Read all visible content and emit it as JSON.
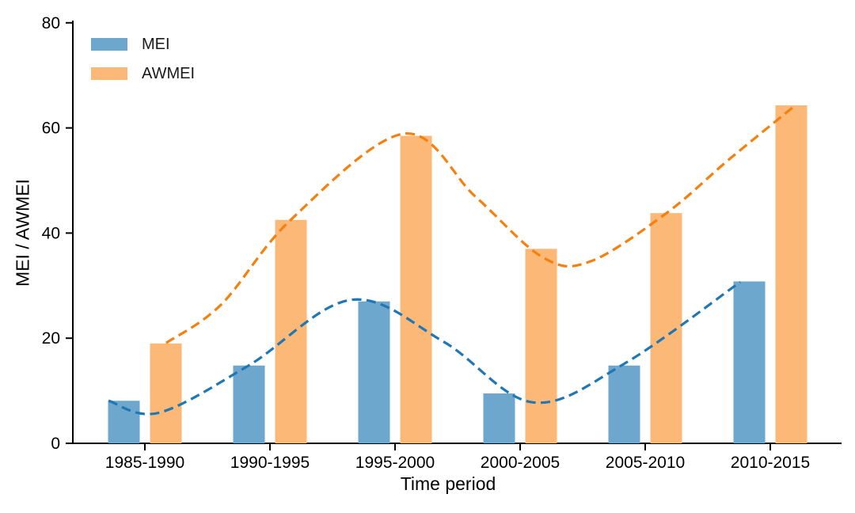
{
  "chart_data": {
    "type": "bar",
    "title": "",
    "xlabel": "Time period",
    "ylabel": "MEI / AWMEI",
    "categories": [
      "1985-1990",
      "1990-1995",
      "1995-2000",
      "2000-2005",
      "2005-2010",
      "2010-2015"
    ],
    "yticks": [
      0,
      20,
      40,
      60,
      80
    ],
    "ylim": [
      0,
      80
    ],
    "grid": false,
    "background": "#FFFFFF",
    "axis_color": "#000000",
    "trend_line_style": "dashed",
    "legend": {
      "position": "upper-left",
      "entries": [
        "MEI",
        "AWMEI"
      ]
    },
    "series": [
      {
        "name": "MEI",
        "bar_color": "#6DA7CE",
        "trend_color": "#1F77B4",
        "values": [
          8.1,
          14.8,
          27.0,
          9.5,
          14.8,
          30.8
        ],
        "trend_points": [
          [
            -0.29,
            8.1
          ],
          [
            0.11,
            5.8
          ],
          [
            0.83,
            14.8
          ],
          [
            1.65,
            27.3
          ],
          [
            2.39,
            19.3
          ],
          [
            3.1,
            7.8
          ],
          [
            3.83,
            15.1
          ],
          [
            4.76,
            30.7
          ]
        ]
      },
      {
        "name": "AWMEI",
        "bar_color": "#FBB877",
        "trend_color": "#F5800E",
        "values": [
          19.0,
          42.5,
          58.5,
          37.0,
          43.8,
          64.3
        ],
        "trend_points": [
          [
            0.17,
            19.1
          ],
          [
            0.61,
            26.4
          ],
          [
            1.17,
            42.6
          ],
          [
            2.07,
            58.9
          ],
          [
            2.64,
            47.0
          ],
          [
            3.18,
            35.4
          ],
          [
            3.56,
            34.6
          ],
          [
            4.17,
            43.8
          ],
          [
            4.67,
            54.0
          ],
          [
            5.2,
            64.3
          ]
        ]
      }
    ]
  }
}
